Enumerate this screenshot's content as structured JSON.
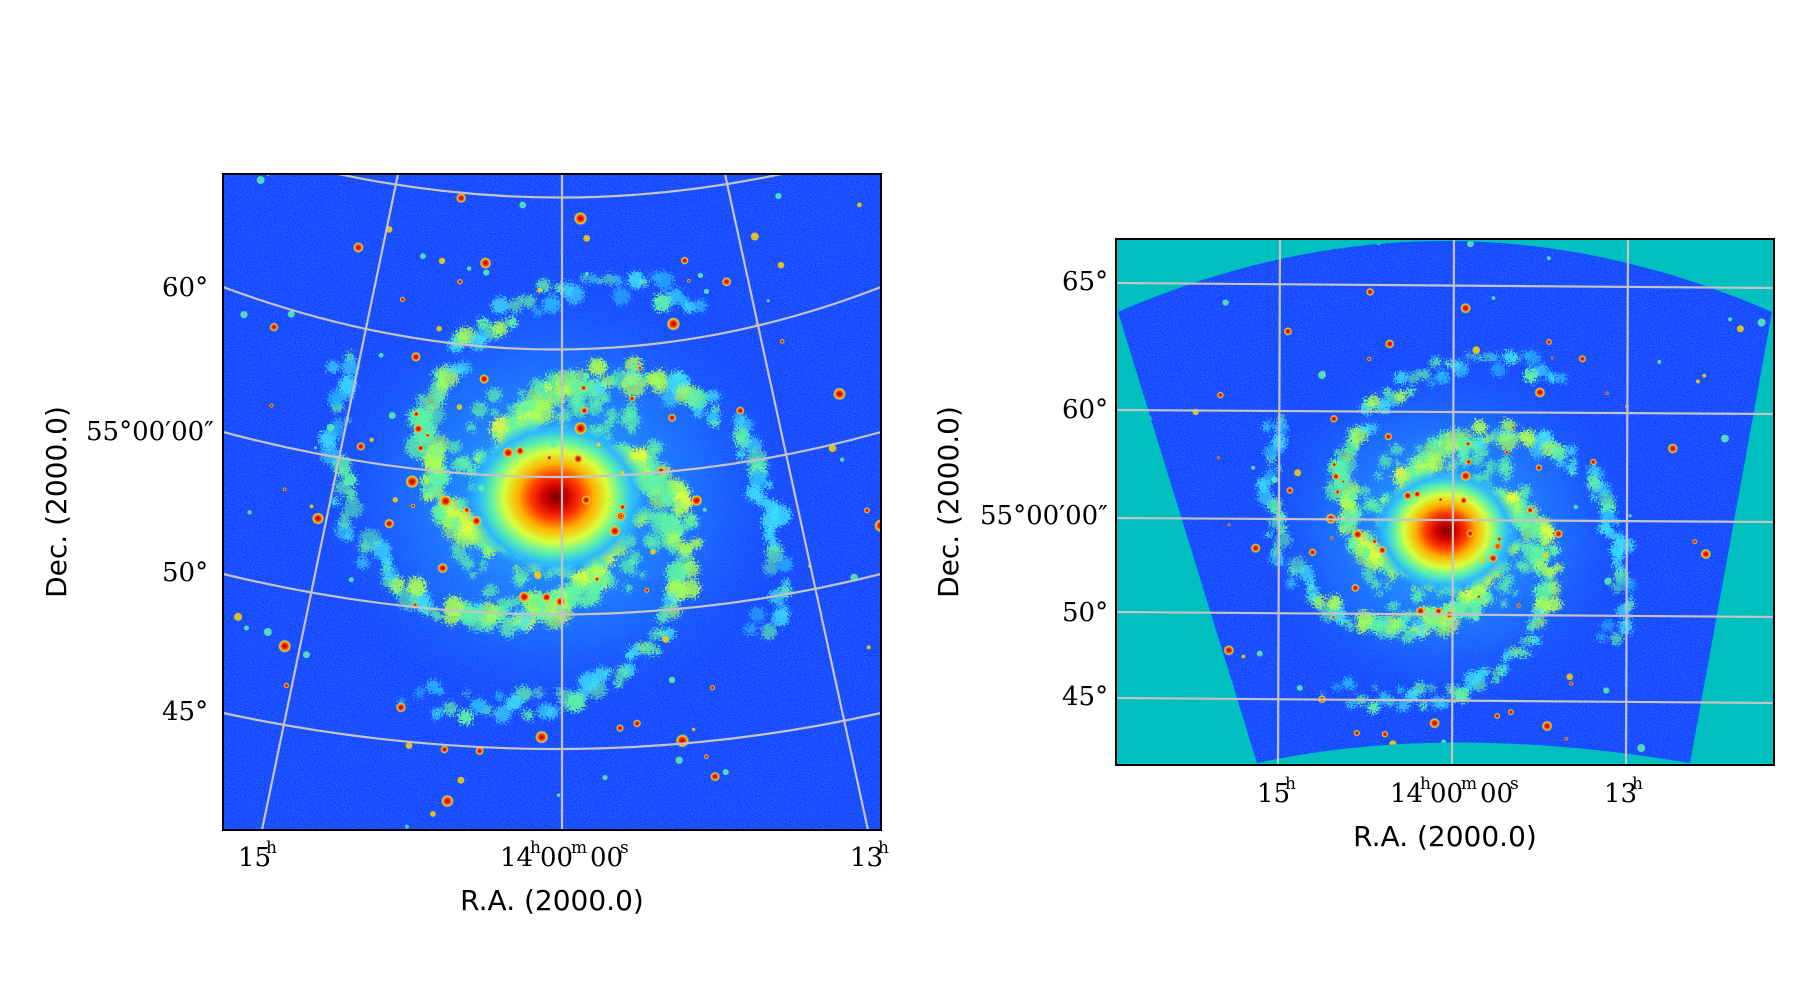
{
  "figure": {
    "panels": [
      {
        "projection_name": "left-panel",
        "xlabel": "R.A. (2000.0)",
        "ylabel": "Dec. (2000.0)",
        "ra_ticks": [
          {
            "main": "15",
            "sup": "h"
          },
          {
            "main": "14",
            "sup": "h",
            "main2": "00",
            "sup2": "m",
            "main3": "00",
            "sup3": "s"
          },
          {
            "main": "13",
            "sup": "h"
          }
        ],
        "dec_ticks": [
          "60°",
          "55°00′00″",
          "50°",
          "45°"
        ],
        "colors": {
          "background": "#1340ff",
          "outside": null
        }
      },
      {
        "projection_name": "right-panel",
        "xlabel": "R.A. (2000.0)",
        "ylabel": "Dec. (2000.0)",
        "ra_ticks": [
          {
            "main": "15",
            "sup": "h"
          },
          {
            "main": "14",
            "sup": "h",
            "main2": "00",
            "sup2": "m",
            "main3": "00",
            "sup3": "s"
          },
          {
            "main": "13",
            "sup": "h"
          }
        ],
        "dec_ticks": [
          "65°",
          "60°",
          "55°00′00″",
          "50°",
          "45°"
        ],
        "colors": {
          "background": "#1340ff",
          "outside": "#00bfbf"
        }
      }
    ],
    "colormap": [
      "#000a8f",
      "#1340ff",
      "#22a8ff",
      "#2fe6d0",
      "#a8ff57",
      "#ffe600",
      "#ff7a00",
      "#d40000",
      "#7a0000"
    ]
  }
}
